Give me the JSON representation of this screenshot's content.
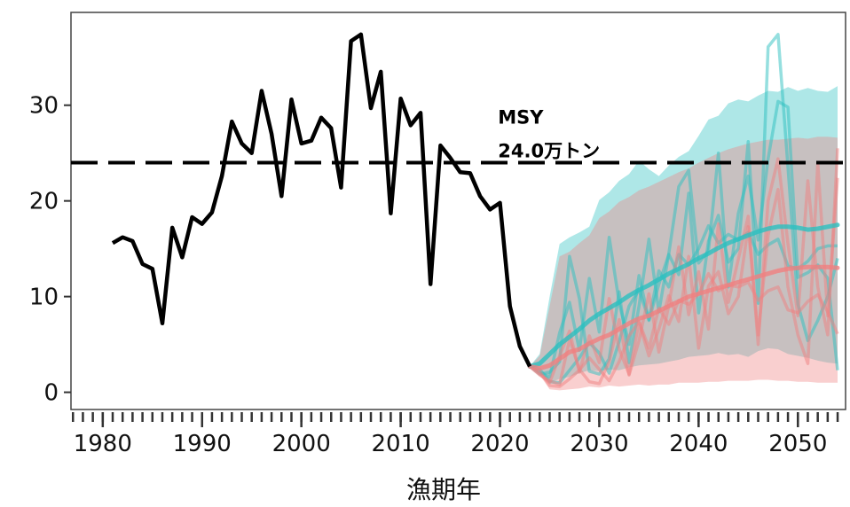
{
  "chart_data": {
    "type": "line",
    "title": "",
    "xlabel": "漁期年",
    "ylabel": "",
    "xlim": [
      1976.8,
      2054.8
    ],
    "ylim": [
      -1.8,
      39.7
    ],
    "xticks": [
      1980,
      1990,
      2000,
      2010,
      2020,
      2030,
      2040,
      2050
    ],
    "yticks": [
      0,
      10,
      20,
      30
    ],
    "minor_xticks_every": 1,
    "grid": false,
    "legend": "none",
    "reference_line": {
      "y": 24.0,
      "style": "dashed",
      "label_line1": "MSY",
      "label_line2": "24.0万トン",
      "label_x": 2019.8
    },
    "historical": {
      "color": "#000000",
      "x": [
        1981,
        1982,
        1983,
        1984,
        1985,
        1986,
        1987,
        1988,
        1989,
        1990,
        1991,
        1992,
        1993,
        1994,
        1995,
        1996,
        1997,
        1998,
        1999,
        2000,
        2001,
        2002,
        2003,
        2004,
        2005,
        2006,
        2007,
        2008,
        2009,
        2010,
        2011,
        2012,
        2013,
        2014,
        2015,
        2016,
        2017,
        2018,
        2019,
        2020,
        2021,
        2022,
        2023
      ],
      "y": [
        15.6,
        16.2,
        15.8,
        13.4,
        12.9,
        7.2,
        17.2,
        14.1,
        18.3,
        17.6,
        18.8,
        22.6,
        28.3,
        26.0,
        25.0,
        31.5,
        27.0,
        20.5,
        30.6,
        26.0,
        26.3,
        28.7,
        27.6,
        21.4,
        36.7,
        37.4,
        29.7,
        33.5,
        18.7,
        30.7,
        27.9,
        29.2,
        11.3,
        25.8,
        24.5,
        23.0,
        22.9,
        20.5,
        19.1,
        19.8,
        9.0,
        4.8,
        2.7
      ]
    },
    "projections": [
      {
        "color": "#2bbfbf",
        "band": {
          "x": [
            2023,
            2024,
            2025,
            2026,
            2027,
            2028,
            2029,
            2030,
            2031,
            2032,
            2033,
            2034,
            2035,
            2036,
            2037,
            2038,
            2039,
            2040,
            2041,
            2042,
            2043,
            2044,
            2045,
            2046,
            2047,
            2048,
            2049,
            2050,
            2051,
            2052,
            2053,
            2054
          ],
          "upper": [
            2.7,
            4.0,
            10.0,
            15.5,
            16.2,
            16.7,
            17.3,
            20.1,
            20.9,
            22.1,
            22.8,
            24.2,
            23.3,
            22.6,
            23.7,
            24.6,
            25.2,
            26.8,
            28.5,
            28.9,
            30.2,
            30.6,
            30.4,
            31.0,
            31.5,
            31.4,
            31.9,
            31.5,
            31.8,
            31.5,
            31.4,
            32.0
          ],
          "lower": [
            2.7,
            2.2,
            1.0,
            1.4,
            1.6,
            2.0,
            2.3,
            2.2,
            2.4,
            2.3,
            2.6,
            2.8,
            2.9,
            3.0,
            3.2,
            3.4,
            3.7,
            3.8,
            3.9,
            4.1,
            3.9,
            4.0,
            3.7,
            4.3,
            4.6,
            4.5,
            4.0,
            3.8,
            3.6,
            3.3,
            3.1,
            3.0
          ]
        },
        "median": {
          "x": [
            2023,
            2024,
            2025,
            2026,
            2027,
            2028,
            2029,
            2030,
            2031,
            2032,
            2033,
            2034,
            2035,
            2036,
            2037,
            2038,
            2039,
            2040,
            2041,
            2042,
            2043,
            2044,
            2045,
            2046,
            2047,
            2048,
            2049,
            2050,
            2051,
            2052,
            2053,
            2054
          ],
          "y": [
            2.7,
            3.0,
            4.0,
            5.0,
            5.8,
            6.6,
            7.5,
            8.2,
            8.8,
            9.4,
            10.1,
            10.7,
            11.2,
            11.8,
            12.4,
            12.9,
            13.4,
            14.0,
            14.5,
            15.1,
            15.6,
            16.0,
            16.4,
            16.8,
            17.1,
            17.3,
            17.3,
            17.2,
            17.0,
            17.1,
            17.3,
            17.5
          ]
        },
        "traces": [
          {
            "x": [
              2023,
              2024,
              2025,
              2026,
              2027,
              2028,
              2029,
              2030,
              2031,
              2032,
              2033,
              2034,
              2035,
              2036,
              2037,
              2038,
              2039,
              2040,
              2041,
              2042,
              2043,
              2044,
              2045,
              2046,
              2047,
              2048,
              2049,
              2050,
              2051,
              2052,
              2053,
              2054
            ],
            "y": [
              2.7,
              1.9,
              2.1,
              3.2,
              14.2,
              9.8,
              2.2,
              1.9,
              3.5,
              10.5,
              3.1,
              9.0,
              16.0,
              8.4,
              14.5,
              21.5,
              23.2,
              13.5,
              14.8,
              25.0,
              11.0,
              18.7,
              22.6,
              15.9,
              24.4,
              30.4,
              29.8,
              12.0,
              12.5,
              13.3,
              11.9,
              2.3
            ]
          },
          {
            "x": [
              2023,
              2024,
              2025,
              2026,
              2027,
              2028,
              2029,
              2030,
              2031,
              2032,
              2033,
              2034,
              2035,
              2036,
              2037,
              2038,
              2039,
              2040,
              2041,
              2042,
              2043,
              2044,
              2045,
              2046,
              2047,
              2048,
              2049,
              2050,
              2051,
              2052,
              2053,
              2054
            ],
            "y": [
              2.7,
              2.1,
              1.6,
              6.2,
              9.4,
              4.4,
              11.9,
              6.3,
              16.2,
              9.4,
              5.0,
              12.2,
              7.5,
              11.3,
              14.4,
              12.3,
              20.8,
              8.3,
              15.8,
              18.5,
              13.6,
              15.0,
              26.2,
              9.3,
              36.1,
              37.4,
              23.5,
              9.2,
              5.4,
              7.5,
              10.0,
              14.0
            ]
          },
          {
            "x": [
              2023,
              2024,
              2025,
              2026,
              2027,
              2028,
              2029,
              2030,
              2031,
              2032,
              2033,
              2034,
              2035,
              2036,
              2037,
              2038,
              2039,
              2040,
              2041,
              2042,
              2043,
              2044,
              2045,
              2046,
              2047,
              2048,
              2049,
              2050,
              2051,
              2052,
              2053,
              2054
            ],
            "y": [
              2.7,
              2.4,
              1.1,
              1.0,
              2.3,
              3.6,
              5.2,
              4.1,
              2.0,
              5.3,
              9.0,
              10.7,
              7.6,
              12.7,
              11.0,
              14.4,
              13.3,
              15.0,
              17.4,
              15.6,
              16.5,
              15.9,
              16.7,
              14.4,
              15.4,
              16.0,
              13.2,
              12.9,
              13.7,
              15.0,
              15.3,
              15.3
            ]
          }
        ]
      },
      {
        "color": "#f08080",
        "band": {
          "x": [
            2023,
            2024,
            2025,
            2026,
            2027,
            2028,
            2029,
            2030,
            2031,
            2032,
            2033,
            2034,
            2035,
            2036,
            2037,
            2038,
            2039,
            2040,
            2041,
            2042,
            2043,
            2044,
            2045,
            2046,
            2047,
            2048,
            2049,
            2050,
            2051,
            2052,
            2053,
            2054
          ],
          "upper": [
            2.7,
            3.8,
            9.0,
            14.2,
            14.7,
            15.6,
            16.4,
            18.2,
            18.9,
            19.9,
            20.4,
            21.1,
            21.5,
            22.0,
            22.5,
            23.0,
            23.4,
            24.0,
            24.5,
            25.0,
            25.4,
            25.7,
            26.0,
            26.2,
            26.4,
            26.4,
            26.5,
            26.6,
            26.5,
            26.7,
            26.7,
            26.6
          ],
          "lower": [
            2.7,
            1.8,
            0.3,
            0.2,
            0.3,
            0.4,
            0.6,
            0.5,
            0.7,
            0.6,
            0.7,
            0.8,
            0.7,
            0.8,
            0.8,
            1.0,
            1.0,
            1.0,
            1.1,
            1.1,
            1.2,
            1.2,
            1.2,
            1.3,
            1.3,
            1.2,
            1.2,
            1.1,
            1.1,
            1.0,
            1.0,
            1.0
          ]
        },
        "median": {
          "x": [
            2023,
            2024,
            2025,
            2026,
            2027,
            2028,
            2029,
            2030,
            2031,
            2032,
            2033,
            2034,
            2035,
            2036,
            2037,
            2038,
            2039,
            2040,
            2041,
            2042,
            2043,
            2044,
            2045,
            2046,
            2047,
            2048,
            2049,
            2050,
            2051,
            2052,
            2053,
            2054
          ],
          "y": [
            2.7,
            2.5,
            2.8,
            3.5,
            4.2,
            4.5,
            5.1,
            5.6,
            6.0,
            6.6,
            7.2,
            7.7,
            8.0,
            8.5,
            9.0,
            9.5,
            10.0,
            10.3,
            10.6,
            10.9,
            11.2,
            11.5,
            11.8,
            12.1,
            12.4,
            12.7,
            12.9,
            13.0,
            13.1,
            13.1,
            13.1,
            13.0
          ]
        },
        "traces": [
          {
            "x": [
              2023,
              2024,
              2025,
              2026,
              2027,
              2028,
              2029,
              2030,
              2031,
              2032,
              2033,
              2034,
              2035,
              2036,
              2037,
              2038,
              2039,
              2040,
              2041,
              2042,
              2043,
              2044,
              2045,
              2046,
              2047,
              2048,
              2049,
              2050,
              2051,
              2052,
              2053,
              2054
            ],
            "y": [
              2.7,
              1.8,
              1.2,
              0.8,
              5.5,
              2.4,
              1.1,
              0.9,
              3.2,
              7.6,
              1.8,
              5.4,
              10.3,
              4.2,
              9.1,
              15.2,
              8.1,
              12.6,
              6.6,
              17.6,
              9.4,
              13.9,
              18.4,
              5.0,
              20.0,
              24.4,
              15.5,
              8.0,
              22.1,
              11.0,
              6.0,
              25.5
            ]
          },
          {
            "x": [
              2023,
              2024,
              2025,
              2026,
              2027,
              2028,
              2029,
              2030,
              2031,
              2032,
              2033,
              2034,
              2035,
              2036,
              2037,
              2038,
              2039,
              2040,
              2041,
              2042,
              2043,
              2044,
              2045,
              2046,
              2047,
              2048,
              2049,
              2050,
              2051,
              2052,
              2053,
              2054
            ],
            "y": [
              2.7,
              1.9,
              1.0,
              3.8,
              6.4,
              2.1,
              5.9,
              3.1,
              9.8,
              4.5,
              1.9,
              7.3,
              3.8,
              6.6,
              10.1,
              7.4,
              14.2,
              4.6,
              11.1,
              12.6,
              8.2,
              10.0,
              17.3,
              6.0,
              16.4,
              21.2,
              11.0,
              6.0,
              3.0,
              24.0,
              8.0,
              22.4
            ]
          },
          {
            "x": [
              2023,
              2024,
              2025,
              2026,
              2027,
              2028,
              2029,
              2030,
              2031,
              2032,
              2033,
              2034,
              2035,
              2036,
              2037,
              2038,
              2039,
              2040,
              2041,
              2042,
              2043,
              2044,
              2045,
              2046,
              2047,
              2048,
              2049,
              2050,
              2051,
              2052,
              2053,
              2054
            ],
            "y": [
              2.7,
              2.2,
              0.7,
              0.6,
              1.4,
              2.3,
              3.6,
              2.4,
              1.2,
              3.2,
              5.9,
              7.4,
              4.6,
              8.8,
              7.1,
              9.6,
              9.2,
              10.3,
              12.4,
              10.6,
              11.2,
              11.0,
              11.5,
              9.6,
              10.6,
              11.0,
              8.6,
              8.3,
              9.5,
              10.2,
              8.4,
              6.1
            ]
          }
        ]
      }
    ]
  }
}
